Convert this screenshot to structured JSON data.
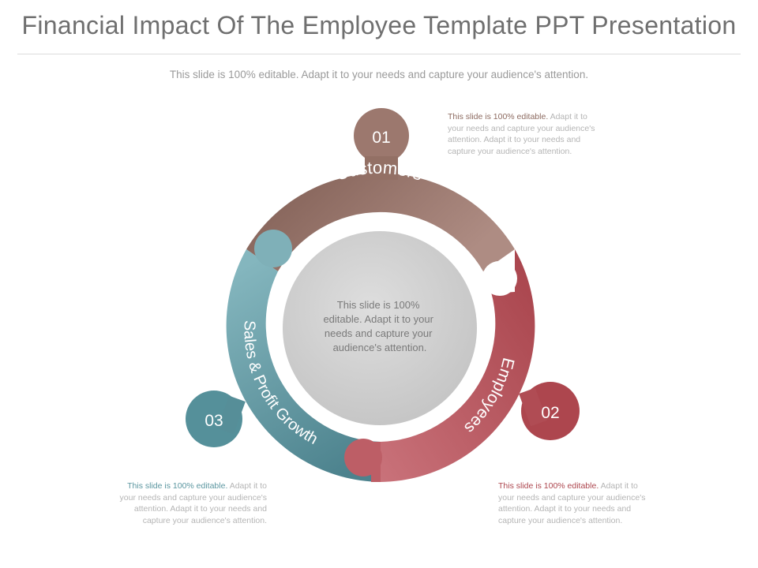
{
  "title": "Financial Impact Of The Employee Template PPT Presentation",
  "subtitle": "This slide is 100% editable. Adapt it to your needs and capture your audience's attention.",
  "center_text": [
    "This slide is 100%",
    "editable. Adapt it to your",
    "needs and capture your",
    "audience's attention."
  ],
  "segments": [
    {
      "number": "01",
      "label": "Customers",
      "color": "#9a756b",
      "note_lead": "This slide is 100% editable.",
      "note_rest": " Adapt it to your needs and capture your audience's attention. Adapt it to your needs and capture your audience's attention."
    },
    {
      "number": "02",
      "label": "Employees",
      "color": "#b24a52",
      "note_lead": "This slide is 100% editable.",
      "note_rest": " Adapt it to your needs and capture your audience's attention. Adapt it to your needs and capture your audience's attention."
    },
    {
      "number": "03",
      "label": "Sales & Profit Growth",
      "color": "#5d939c",
      "note_lead": "This slide is 100% editable.",
      "note_rest": " Adapt it to your needs and capture your audience's attention. Adapt it to your needs and capture your audience's attention."
    }
  ],
  "colors": {
    "customers_light": "#a68378",
    "customers_dark": "#7f5d53",
    "employees_light": "#c4676e",
    "employees_dark": "#a8434b",
    "sales_light": "#7aaeb7",
    "sales_dark": "#4f8590",
    "center_fill": "#cfcfcf"
  }
}
